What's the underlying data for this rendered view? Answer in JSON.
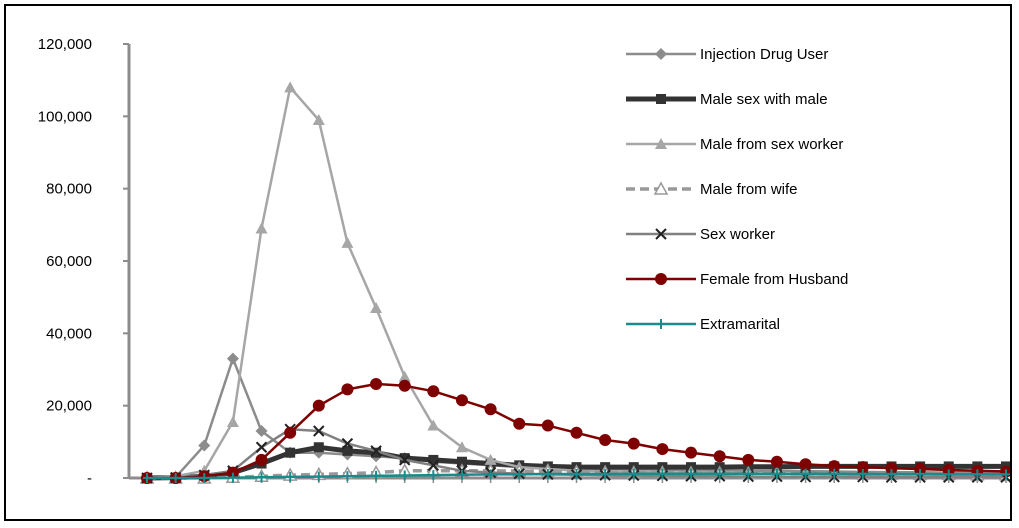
{
  "chart_data": {
    "type": "line",
    "title": "",
    "xlabel": "",
    "ylabel": "",
    "ylim": [
      0,
      120000
    ],
    "y_ticks": [
      {
        "value": 0,
        "label": "-"
      },
      {
        "value": 20000,
        "label": "20,000"
      },
      {
        "value": 40000,
        "label": "40,000"
      },
      {
        "value": 60000,
        "label": "60,000"
      },
      {
        "value": 80000,
        "label": "80,000"
      },
      {
        "value": 100000,
        "label": "100,000"
      },
      {
        "value": 120000,
        "label": "120,000"
      }
    ],
    "x_ticks_labeled": false,
    "grid": false,
    "legend_position": "right",
    "series": [
      {
        "name": "Injection Drug User",
        "color": "#8c8c8c",
        "marker": "diamond",
        "line_width": 2.5,
        "dashed": false,
        "values": [
          0,
          200,
          9000,
          33000,
          13000,
          7000,
          7000,
          6500,
          6000,
          5500,
          4500,
          4000,
          3500,
          3000,
          2800,
          2600,
          2500,
          2400,
          2300,
          2200,
          2100,
          2000,
          2000,
          1900,
          1800,
          1700,
          1600,
          1600,
          1500,
          1500,
          1500
        ]
      },
      {
        "name": "Male sex with male",
        "color": "#333333",
        "marker": "square",
        "line_width": 5,
        "dashed": false,
        "values": [
          0,
          100,
          500,
          1500,
          4000,
          7000,
          8500,
          7500,
          7000,
          5500,
          5000,
          4500,
          4000,
          3500,
          3200,
          3000,
          3000,
          3000,
          3000,
          3000,
          3000,
          3100,
          3100,
          3200,
          3200,
          3200,
          3200,
          3200,
          3200,
          3200,
          3200
        ]
      },
      {
        "name": "Male from sex worker",
        "color": "#a6a6a6",
        "marker": "triangle",
        "line_width": 2.5,
        "dashed": false,
        "values": [
          0,
          500,
          2000,
          15500,
          69000,
          108000,
          99000,
          65000,
          47000,
          28000,
          14500,
          8500,
          5000,
          3000,
          2500,
          2000,
          1800,
          1700,
          1600,
          1500,
          1400,
          1300,
          1200,
          1100,
          1000,
          900,
          800,
          700,
          600,
          500,
          500
        ]
      },
      {
        "name": "Male from wife",
        "color": "#999999",
        "marker": "triangle-open",
        "line_width": 3.5,
        "dashed": true,
        "values": [
          0,
          0,
          0,
          200,
          500,
          800,
          1000,
          1200,
          1500,
          2000,
          2000,
          2000,
          2000,
          1900,
          1800,
          1700,
          1600,
          1500,
          1500,
          1400,
          1400,
          1300,
          1300,
          1200,
          1200,
          1100,
          1100,
          1000,
          1000,
          900,
          900
        ]
      },
      {
        "name": "Sex worker",
        "color": "#808080",
        "marker": "x",
        "line_width": 2.5,
        "dashed": false,
        "values": [
          0,
          100,
          800,
          2000,
          8500,
          13500,
          13000,
          9500,
          7500,
          5000,
          3500,
          2000,
          1500,
          1200,
          1000,
          900,
          800,
          700,
          600,
          500,
          500,
          400,
          400,
          300,
          300,
          300,
          200,
          200,
          200,
          200,
          200
        ]
      },
      {
        "name": "Female from Husband",
        "color": "#7f0000",
        "marker": "circle",
        "line_width": 2.5,
        "dashed": false,
        "values": [
          0,
          0,
          500,
          1500,
          5000,
          12500,
          20000,
          24500,
          26000,
          25500,
          24000,
          21500,
          19000,
          15000,
          14500,
          12500,
          10500,
          9500,
          8000,
          7000,
          6000,
          5000,
          4500,
          3800,
          3300,
          3000,
          2700,
          2500,
          2200,
          2000,
          1800
        ]
      },
      {
        "name": "Extramarital",
        "color": "#1a8a8a",
        "marker": "plus",
        "line_width": 2.5,
        "dashed": false,
        "values": [
          0,
          0,
          0,
          100,
          200,
          300,
          400,
          500,
          600,
          700,
          800,
          900,
          1000,
          1000,
          1100,
          1100,
          1100,
          1200,
          1200,
          1200,
          1200,
          1200,
          1200,
          1200,
          1200,
          1100,
          1100,
          1100,
          1000,
          1000,
          1000
        ]
      }
    ]
  }
}
